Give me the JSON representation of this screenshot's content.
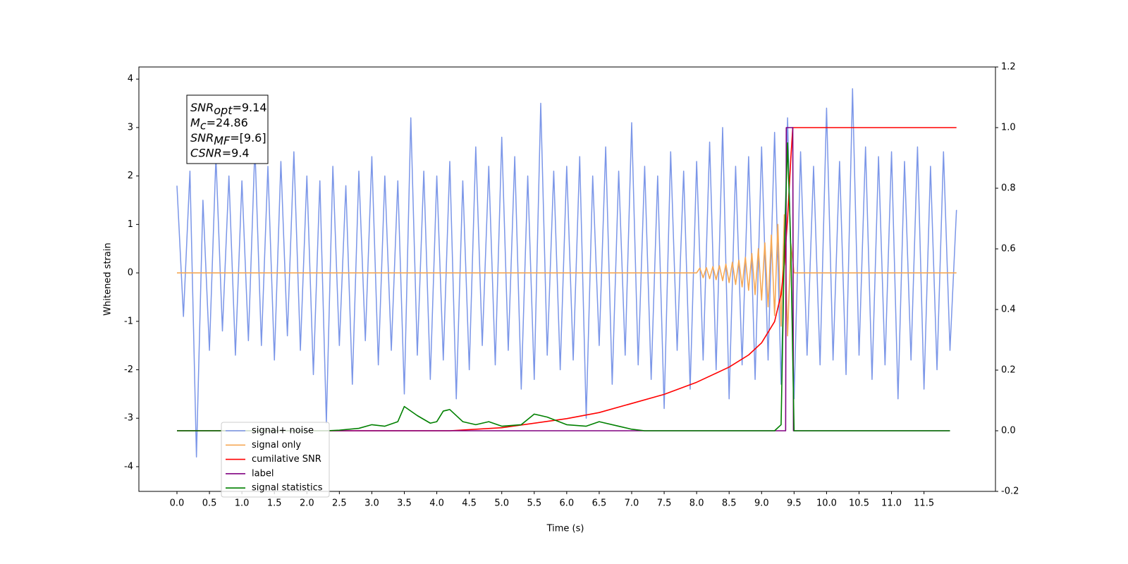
{
  "chart_data": {
    "type": "line",
    "xlabel": "Time (s)",
    "ylabel": "Whitened strain",
    "xlim": [
      -0.586,
      12.6
    ],
    "ylim": [
      -4.51,
      4.25
    ],
    "y2lim": [
      -0.2,
      1.2
    ],
    "xticks": [
      {
        "value": 0,
        "label": "0.0"
      },
      0.5,
      {
        "value": 1,
        "label": "1.0"
      },
      1.5,
      {
        "value": 2,
        "label": "2.0"
      },
      2.5,
      {
        "value": 3,
        "label": "3.0"
      },
      3.5,
      {
        "value": 4,
        "label": "4.0"
      },
      4.5,
      {
        "value": 5,
        "label": "5.0"
      },
      5.5,
      {
        "value": 6,
        "label": "6.0"
      },
      6.5,
      {
        "value": 7,
        "label": "7.0"
      },
      7.5,
      {
        "value": 8,
        "label": "8.0"
      },
      8.5,
      {
        "value": 9,
        "label": "9.0"
      },
      9.5,
      {
        "value": 10,
        "label": "10.0"
      },
      10.5,
      {
        "value": 11,
        "label": "11.0"
      },
      11.5
    ],
    "yticks": [
      -4,
      -3,
      -2,
      -1,
      0,
      1,
      2,
      3,
      4
    ],
    "y2ticks": [
      -0.2,
      {
        "value": 0,
        "label": "0.0"
      },
      0.2,
      0.4,
      0.6,
      0.8,
      {
        "value": 1,
        "label": "1.0"
      },
      1.2
    ],
    "legend_position": "lower left",
    "annotation": [
      {
        "main": "SNR",
        "sub": "opt",
        "rest": "=9.14"
      },
      {
        "main": "M",
        "sub": "c",
        "rest": "=24.86"
      },
      {
        "main": "SNR",
        "sub": "MF",
        "rest": "=[9.6]"
      },
      {
        "main": "CSNR",
        "rest": "=9.4"
      }
    ],
    "series": [
      {
        "name": "signal+ noise",
        "color": "#7b96e8",
        "x": [
          0,
          0.1,
          0.2,
          0.3,
          0.4,
          0.5,
          0.6,
          0.7,
          0.8,
          0.9,
          1,
          1.1,
          1.2,
          1.3,
          1.4,
          1.5,
          1.6,
          1.7,
          1.8,
          1.9,
          2,
          2.1,
          2.2,
          2.3,
          2.4,
          2.5,
          2.6,
          2.7,
          2.8,
          2.9,
          3,
          3.1,
          3.2,
          3.3,
          3.4,
          3.5,
          3.6,
          3.7,
          3.8,
          3.9,
          4,
          4.1,
          4.2,
          4.3,
          4.4,
          4.5,
          4.6,
          4.7,
          4.8,
          4.9,
          5,
          5.1,
          5.2,
          5.3,
          5.4,
          5.5,
          5.6,
          5.7,
          5.8,
          5.9,
          6,
          6.1,
          6.2,
          6.3,
          6.4,
          6.5,
          6.6,
          6.7,
          6.8,
          6.9,
          7,
          7.1,
          7.2,
          7.3,
          7.4,
          7.5,
          7.6,
          7.7,
          7.8,
          7.9,
          8,
          8.1,
          8.2,
          8.3,
          8.4,
          8.5,
          8.6,
          8.7,
          8.8,
          8.9,
          9,
          9.1,
          9.2,
          9.3,
          9.4,
          9.5,
          9.6,
          9.7,
          9.8,
          9.9,
          10,
          10.1,
          10.2,
          10.3,
          10.4,
          10.5,
          10.6,
          10.7,
          10.8,
          10.9,
          11,
          11.1,
          11.2,
          11.3,
          11.4,
          11.5,
          11.6,
          11.7,
          11.8,
          11.9,
          12
        ],
        "values": [
          1.8,
          -0.9,
          2.1,
          -3.8,
          1.5,
          -1.6,
          2.4,
          -1.2,
          2.0,
          -1.7,
          1.9,
          -1.4,
          2.6,
          -1.5,
          2.2,
          -1.8,
          2.3,
          -1.3,
          2.5,
          -1.6,
          2.0,
          -2.1,
          1.9,
          -3.1,
          2.2,
          -1.5,
          1.8,
          -2.3,
          2.1,
          -1.4,
          2.4,
          -1.9,
          2.0,
          -1.6,
          1.9,
          -2.5,
          3.2,
          -1.7,
          2.1,
          -2.2,
          2.0,
          -1.8,
          2.3,
          -2.6,
          1.9,
          -2.0,
          2.6,
          -1.5,
          2.2,
          -1.9,
          2.8,
          -1.6,
          2.4,
          -2.4,
          2.0,
          -2.2,
          3.5,
          -1.7,
          2.1,
          -2.0,
          2.2,
          -1.8,
          2.4,
          -3.0,
          2.0,
          -1.5,
          2.6,
          -2.3,
          2.1,
          -1.7,
          3.1,
          -1.9,
          2.2,
          -2.2,
          2.0,
          -2.8,
          2.5,
          -1.6,
          2.1,
          -2.4,
          2.3,
          -1.8,
          2.7,
          -2.0,
          3.0,
          -2.6,
          2.2,
          -1.9,
          2.4,
          -2.2,
          2.6,
          -1.8,
          2.9,
          -2.3,
          3.2,
          -2.6,
          2.5,
          -1.7,
          2.2,
          -1.9,
          3.4,
          -1.8,
          2.3,
          -2.1,
          3.8,
          -1.7,
          2.6,
          -2.2,
          2.4,
          -1.9,
          2.5,
          -2.6,
          2.3,
          -1.8,
          2.6,
          -2.4,
          2.2,
          -2.0,
          2.5,
          -1.6,
          1.3
        ]
      },
      {
        "name": "signal only",
        "color": "#f5a855",
        "x": [
          0,
          8,
          8.05,
          8.1,
          8.15,
          8.2,
          8.25,
          8.3,
          8.35,
          8.4,
          8.45,
          8.5,
          8.55,
          8.6,
          8.65,
          8.7,
          8.75,
          8.8,
          8.85,
          8.9,
          8.95,
          9,
          9.05,
          9.1,
          9.15,
          9.2,
          9.25,
          9.3,
          9.35,
          9.4,
          9.45,
          9.5,
          12
        ],
        "values": [
          0,
          0,
          0.1,
          -0.1,
          0.11,
          -0.12,
          0.13,
          -0.14,
          0.15,
          -0.16,
          0.18,
          -0.2,
          0.22,
          -0.24,
          0.26,
          -0.29,
          0.32,
          -0.36,
          0.4,
          -0.45,
          0.5,
          -0.56,
          0.62,
          -0.7,
          0.78,
          -0.88,
          1.0,
          -1.1,
          1.2,
          -1.3,
          0.6,
          0,
          0
        ]
      },
      {
        "name": "cumilative SNR",
        "color": "#ff0000",
        "axis": "y2",
        "x": [
          0,
          4.2,
          5,
          6,
          6.5,
          7,
          7.5,
          8,
          8.5,
          8.8,
          9,
          9.2,
          9.3,
          9.35,
          9.4,
          9.45,
          9.48,
          12
        ],
        "values": [
          0,
          0,
          0.01,
          0.04,
          0.06,
          0.09,
          0.12,
          0.16,
          0.21,
          0.25,
          0.29,
          0.36,
          0.45,
          0.55,
          0.7,
          0.9,
          1,
          1
        ]
      },
      {
        "name": "label",
        "color": "#800080",
        "axis": "y2",
        "x": [
          0,
          9.37,
          9.38,
          9.48,
          9.49,
          11.9
        ],
        "values": [
          0,
          0,
          1,
          1,
          0,
          0
        ]
      },
      {
        "name": "signal statistics",
        "color": "#008000",
        "axis": "y2",
        "x": [
          0,
          2.3,
          2.5,
          2.8,
          3,
          3.2,
          3.4,
          3.5,
          3.7,
          3.9,
          4,
          4.1,
          4.2,
          4.4,
          4.6,
          4.8,
          5,
          5.3,
          5.5,
          5.7,
          6,
          6.3,
          6.5,
          6.8,
          7,
          7.2,
          9.2,
          9.3,
          9.35,
          9.4,
          9.45,
          9.5,
          11.9
        ],
        "values": [
          0,
          0,
          0.002,
          0.008,
          0.02,
          0.015,
          0.03,
          0.08,
          0.05,
          0.025,
          0.03,
          0.065,
          0.07,
          0.03,
          0.02,
          0.03,
          0.015,
          0.02,
          0.055,
          0.045,
          0.02,
          0.015,
          0.03,
          0.015,
          0.005,
          0,
          0,
          0.02,
          0.6,
          0.95,
          0.6,
          0,
          0
        ]
      }
    ]
  }
}
